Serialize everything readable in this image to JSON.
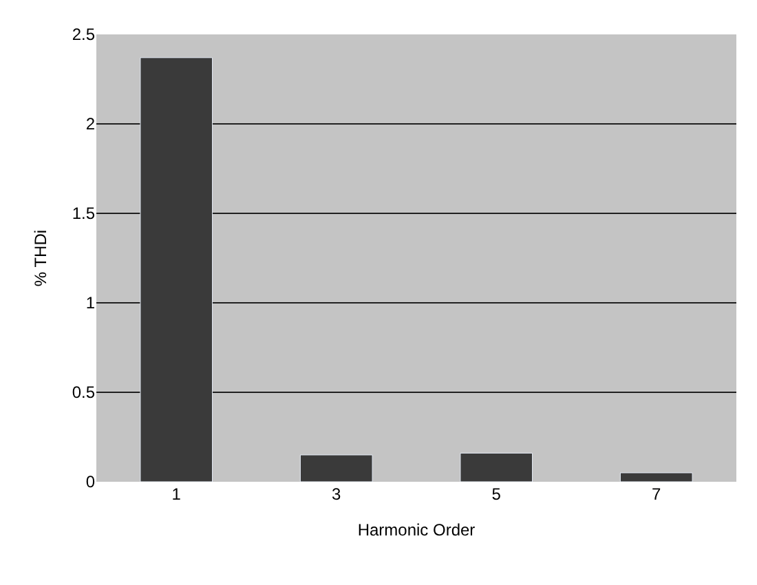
{
  "chart_data": {
    "type": "bar",
    "xlabel": "Harmonic Order",
    "ylabel": "% THDi",
    "categories": [
      "1",
      "3",
      "5",
      "7"
    ],
    "values": [
      2.37,
      0.15,
      0.16,
      0.05
    ],
    "color": "#3a3a3a",
    "ylim": [
      0,
      2.5
    ],
    "yticks": [
      0,
      0.5,
      1,
      1.5,
      2,
      2.5
    ],
    "grid": "y"
  }
}
